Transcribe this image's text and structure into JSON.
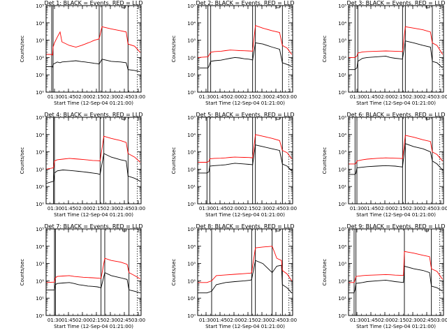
{
  "figure": {
    "x_axis_title": "Start Time (12-Sep-04 01:21:00)",
    "y_axis_title": "Counts/sec",
    "y_tick_labels": [
      "10⁰",
      "10¹",
      "10²",
      "10³",
      "10⁴",
      "10⁵"
    ],
    "x_tick_labels_a": [
      "01:30",
      "01:45",
      "02:00",
      "02:15",
      "02:30",
      "02:45",
      "03:00"
    ],
    "x_tick_labels_b": [
      "01:30",
      "01:45",
      "02:00",
      "02:15",
      "02:30",
      "02:45",
      "03:00"
    ],
    "colors": {
      "events": "#000000",
      "lld": "#ff0000"
    }
  },
  "chart_data": [
    {
      "type": "line",
      "title": "Det 1: BLACK = Events, RED = LLD",
      "xlabel": "Start Time (12-Sep-04 01:21:00)",
      "ylabel": "Counts/sec",
      "x_unit": "minutes after 01:21",
      "xlim": [
        0,
        102
      ],
      "ylim": [
        1,
        100000
      ],
      "y_log": true,
      "vlines": [
        6,
        7.5,
        57,
        60,
        88
      ],
      "series": [
        {
          "name": "Events",
          "color": "#000000",
          "x": [
            0,
            6,
            7,
            7.5,
            9,
            12,
            15,
            17,
            25,
            32,
            38,
            42,
            45,
            48,
            50,
            52,
            55,
            57,
            60,
            70,
            80,
            86,
            88,
            95,
            101
          ],
          "y": [
            30,
            30,
            28,
            40,
            45,
            55,
            50,
            55,
            60,
            65,
            58,
            55,
            52,
            50,
            48,
            46,
            44,
            42,
            80,
            60,
            55,
            50,
            20,
            18,
            15
          ]
        },
        {
          "name": "LLD",
          "color": "#ff0000",
          "x": [
            0,
            6,
            7,
            7.5,
            9,
            12,
            15,
            17,
            25,
            32,
            38,
            42,
            45,
            48,
            50,
            52,
            55,
            57,
            60,
            70,
            80,
            86,
            88,
            95,
            101
          ],
          "y": [
            150,
            150,
            140,
            400,
            700,
            1500,
            3000,
            800,
            500,
            400,
            500,
            600,
            700,
            800,
            900,
            1000,
            1100,
            1200,
            6000,
            4500,
            3500,
            3000,
            600,
            450,
            200
          ]
        }
      ]
    },
    {
      "type": "line",
      "title": "Det 2: BLACK = Events, RED = LLD",
      "xlabel": "Start Time (12-Sep-04 01:21:00)",
      "ylabel": "Counts/sec",
      "x_unit": "minutes after 01:21",
      "xlim": [
        0,
        102
      ],
      "ylim": [
        1,
        100000
      ],
      "y_log": true,
      "vlines": [
        11,
        14,
        59,
        62,
        91
      ],
      "series": [
        {
          "name": "Events",
          "color": "#000000",
          "x": [
            0,
            11,
            12,
            14,
            18,
            25,
            30,
            35,
            40,
            45,
            50,
            55,
            58,
            59,
            62,
            70,
            80,
            88,
            91,
            96,
            101
          ],
          "y": [
            25,
            25,
            30,
            60,
            65,
            70,
            80,
            90,
            100,
            95,
            85,
            80,
            75,
            70,
            700,
            600,
            400,
            300,
            50,
            40,
            30
          ]
        },
        {
          "name": "LLD",
          "color": "#ff0000",
          "x": [
            0,
            11,
            12,
            14,
            18,
            25,
            30,
            35,
            40,
            45,
            50,
            55,
            58,
            59,
            62,
            70,
            80,
            88,
            91,
            96,
            101
          ],
          "y": [
            100,
            110,
            130,
            200,
            220,
            230,
            250,
            270,
            260,
            250,
            245,
            240,
            235,
            230,
            7000,
            5000,
            3500,
            2800,
            500,
            350,
            150
          ]
        }
      ]
    },
    {
      "type": "line",
      "title": "Det 3: BLACK = Events, RED = LLD",
      "xlabel": "Start Time (12-Sep-04 01:21:00)",
      "ylabel": "Counts/sec",
      "x_unit": "minutes after 01:21",
      "xlim": [
        0,
        102
      ],
      "ylim": [
        1,
        100000
      ],
      "y_log": true,
      "vlines": [
        7,
        10,
        58,
        61,
        90
      ],
      "series": [
        {
          "name": "Events",
          "color": "#000000",
          "x": [
            0,
            7,
            9,
            10,
            15,
            20,
            30,
            40,
            45,
            50,
            55,
            58,
            61,
            70,
            80,
            88,
            90,
            95,
            101
          ],
          "y": [
            20,
            20,
            25,
            60,
            90,
            100,
            110,
            120,
            100,
            90,
            85,
            80,
            900,
            700,
            500,
            400,
            60,
            50,
            25
          ]
        },
        {
          "name": "LLD",
          "color": "#ff0000",
          "x": [
            0,
            7,
            9,
            10,
            15,
            20,
            30,
            40,
            45,
            50,
            55,
            58,
            61,
            70,
            80,
            88,
            90,
            95,
            101
          ],
          "y": [
            100,
            100,
            120,
            180,
            210,
            220,
            230,
            240,
            235,
            230,
            225,
            220,
            6000,
            5000,
            4000,
            3000,
            700,
            500,
            150
          ]
        }
      ]
    },
    {
      "type": "line",
      "title": "Det 4: BLACK = Events, RED = LLD",
      "xlabel": "Start Time (12-Sep-04 01:21:00)",
      "ylabel": "Counts/sec",
      "x_unit": "minutes after 01:21",
      "xlim": [
        0,
        102
      ],
      "ylim": [
        1,
        100000
      ],
      "y_log": true,
      "vlines": [
        8,
        9,
        58,
        62,
        88
      ],
      "series": [
        {
          "name": "Events",
          "color": "#000000",
          "x": [
            0,
            8,
            9,
            12,
            18,
            25,
            30,
            35,
            40,
            45,
            50,
            55,
            58,
            62,
            70,
            80,
            86,
            88,
            95,
            101
          ],
          "y": [
            15,
            20,
            60,
            80,
            90,
            85,
            80,
            75,
            70,
            65,
            60,
            55,
            50,
            800,
            500,
            350,
            300,
            40,
            30,
            20
          ]
        },
        {
          "name": "LLD",
          "color": "#ff0000",
          "x": [
            0,
            8,
            9,
            12,
            18,
            25,
            30,
            35,
            40,
            45,
            50,
            55,
            58,
            62,
            70,
            80,
            86,
            88,
            95,
            101
          ],
          "y": [
            100,
            120,
            300,
            350,
            380,
            420,
            400,
            380,
            360,
            340,
            320,
            310,
            300,
            8000,
            6000,
            4500,
            3500,
            800,
            500,
            250
          ]
        }
      ]
    },
    {
      "type": "line",
      "title": "Det 5: BLACK = Events, RED = LLD",
      "xlabel": "Start Time (12-Sep-04 01:21:00)",
      "ylabel": "Counts/sec",
      "x_unit": "minutes after 01:21",
      "xlim": [
        0,
        102
      ],
      "ylim": [
        1,
        100000
      ],
      "y_log": true,
      "vlines": [
        10,
        13,
        59,
        62,
        91
      ],
      "series": [
        {
          "name": "Events",
          "color": "#000000",
          "x": [
            0,
            10,
            12,
            13,
            18,
            25,
            30,
            35,
            40,
            45,
            50,
            55,
            58,
            59,
            62,
            70,
            80,
            88,
            91,
            96,
            101
          ],
          "y": [
            60,
            60,
            70,
            150,
            160,
            170,
            180,
            200,
            220,
            210,
            200,
            190,
            185,
            180,
            2500,
            2000,
            1500,
            1200,
            200,
            150,
            80
          ]
        },
        {
          "name": "LLD",
          "color": "#ff0000",
          "x": [
            0,
            10,
            12,
            13,
            18,
            25,
            30,
            35,
            40,
            45,
            50,
            55,
            58,
            59,
            62,
            70,
            80,
            88,
            91,
            96,
            101
          ],
          "y": [
            250,
            250,
            280,
            400,
            420,
            430,
            450,
            480,
            500,
            490,
            480,
            470,
            460,
            450,
            10000,
            8000,
            6000,
            4500,
            1200,
            900,
            400
          ]
        }
      ]
    },
    {
      "type": "line",
      "title": "Det 6: BLACK = Events, RED = LLD",
      "xlabel": "Start Time (12-Sep-04 01:21:00)",
      "ylabel": "Counts/sec",
      "x_unit": "minutes after 01:21",
      "xlim": [
        0,
        102
      ],
      "ylim": [
        1,
        100000
      ],
      "y_log": true,
      "vlines": [
        7,
        9,
        58,
        61,
        90
      ],
      "series": [
        {
          "name": "Events",
          "color": "#000000",
          "x": [
            0,
            7,
            8,
            9,
            15,
            20,
            30,
            40,
            45,
            50,
            55,
            58,
            61,
            70,
            80,
            88,
            90,
            95,
            101
          ],
          "y": [
            50,
            50,
            60,
            120,
            130,
            140,
            150,
            160,
            155,
            150,
            140,
            135,
            3000,
            2000,
            1500,
            1000,
            300,
            200,
            90
          ]
        },
        {
          "name": "LLD",
          "color": "#ff0000",
          "x": [
            0,
            7,
            8,
            9,
            15,
            20,
            30,
            40,
            45,
            50,
            55,
            58,
            61,
            70,
            80,
            88,
            90,
            95,
            101
          ],
          "y": [
            200,
            200,
            220,
            300,
            350,
            380,
            420,
            450,
            440,
            430,
            420,
            410,
            9000,
            7000,
            5000,
            4000,
            1000,
            700,
            300
          ]
        }
      ]
    },
    {
      "type": "line",
      "title": "Det 7: BLACK = Events, RED = LLD",
      "xlabel": "Start Time (12-Sep-04 01:21:00)",
      "ylabel": "Counts/sec",
      "x_unit": "minutes after 01:21",
      "xlim": [
        0,
        102
      ],
      "ylim": [
        1,
        100000
      ],
      "y_log": true,
      "vlines": [
        9,
        10,
        59,
        63,
        89
      ],
      "series": [
        {
          "name": "Events",
          "color": "#000000",
          "x": [
            0,
            9,
            10,
            12,
            18,
            25,
            30,
            35,
            40,
            45,
            50,
            55,
            59,
            63,
            70,
            80,
            87,
            89,
            95,
            101
          ],
          "y": [
            30,
            30,
            60,
            70,
            75,
            80,
            70,
            60,
            55,
            50,
            48,
            45,
            40,
            300,
            200,
            150,
            120,
            30,
            25,
            20
          ]
        },
        {
          "name": "LLD",
          "color": "#ff0000",
          "x": [
            0,
            9,
            10,
            12,
            18,
            25,
            30,
            35,
            40,
            45,
            50,
            55,
            59,
            63,
            70,
            80,
            87,
            89,
            95,
            101
          ],
          "y": [
            80,
            85,
            150,
            180,
            190,
            200,
            180,
            170,
            160,
            155,
            150,
            145,
            140,
            2000,
            1500,
            1200,
            900,
            300,
            200,
            130
          ]
        }
      ]
    },
    {
      "type": "line",
      "title": "Det 8: BLACK = Events, RED = LLD",
      "xlabel": "Start Time (12-Sep-04 01:21:00)",
      "ylabel": "Counts/sec",
      "x_unit": "minutes after 01:21",
      "xlim": [
        0,
        102
      ],
      "ylim": [
        1,
        100000
      ],
      "y_log": true,
      "vlines": [
        15,
        58,
        62,
        80,
        91
      ],
      "series": [
        {
          "name": "Events",
          "color": "#000000",
          "x": [
            0,
            10,
            15,
            20,
            30,
            40,
            50,
            57,
            58,
            62,
            70,
            80,
            85,
            90,
            91,
            96,
            101
          ],
          "y": [
            20,
            20,
            25,
            60,
            80,
            90,
            100,
            110,
            120,
            1500,
            1000,
            300,
            700,
            800,
            60,
            40,
            20
          ]
        },
        {
          "name": "LLD",
          "color": "#ff0000",
          "x": [
            0,
            10,
            15,
            20,
            30,
            40,
            50,
            57,
            58,
            62,
            70,
            80,
            85,
            90,
            91,
            96,
            101
          ],
          "y": [
            80,
            80,
            100,
            200,
            220,
            240,
            260,
            280,
            300,
            8000,
            9000,
            10000,
            2000,
            1500,
            400,
            250,
            100
          ]
        }
      ]
    },
    {
      "type": "line",
      "title": "Det 9: BLACK = Events, RED = LLD",
      "xlabel": "Start Time (12-Sep-04 01:21:00)",
      "ylabel": "Counts/sec",
      "x_unit": "minutes after 01:21",
      "xlim": [
        0,
        102
      ],
      "ylim": [
        1,
        100000
      ],
      "y_log": true,
      "vlines": [
        6,
        8,
        60,
        89
      ],
      "series": [
        {
          "name": "Events",
          "color": "#000000",
          "x": [
            0,
            6,
            7,
            8,
            15,
            20,
            30,
            40,
            45,
            50,
            55,
            59,
            60,
            70,
            80,
            87,
            89,
            95,
            101
          ],
          "y": [
            20,
            20,
            30,
            70,
            80,
            90,
            100,
            110,
            100,
            90,
            85,
            80,
            700,
            500,
            400,
            300,
            50,
            40,
            25
          ]
        },
        {
          "name": "LLD",
          "color": "#ff0000",
          "x": [
            0,
            6,
            7,
            8,
            15,
            20,
            30,
            40,
            45,
            50,
            55,
            59,
            60,
            70,
            80,
            87,
            89,
            95,
            101
          ],
          "y": [
            80,
            80,
            110,
            180,
            200,
            210,
            220,
            230,
            225,
            215,
            210,
            205,
            5000,
            4000,
            3000,
            2500,
            500,
            350,
            120
          ]
        }
      ]
    }
  ]
}
